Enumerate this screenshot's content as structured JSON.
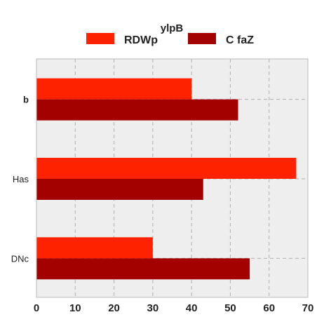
{
  "chart_data": {
    "type": "bar",
    "orientation": "horizontal",
    "categories": [
      "b",
      "Has",
      "DNc"
    ],
    "series": [
      {
        "name": "RDWp",
        "values": [
          40,
          67,
          30
        ],
        "color": "#ff2200"
      },
      {
        "name": "C faZ",
        "values": [
          52,
          43,
          55
        ],
        "color": "#a30000"
      }
    ],
    "xlim": [
      0,
      70
    ],
    "xticks": [
      "0",
      "10",
      "20",
      "30",
      "40",
      "50",
      "60",
      "70"
    ],
    "legend": {
      "title": "ylpB",
      "placement": "top-center"
    },
    "grid": true,
    "background": "#eeeeee",
    "bold_category": "b"
  }
}
